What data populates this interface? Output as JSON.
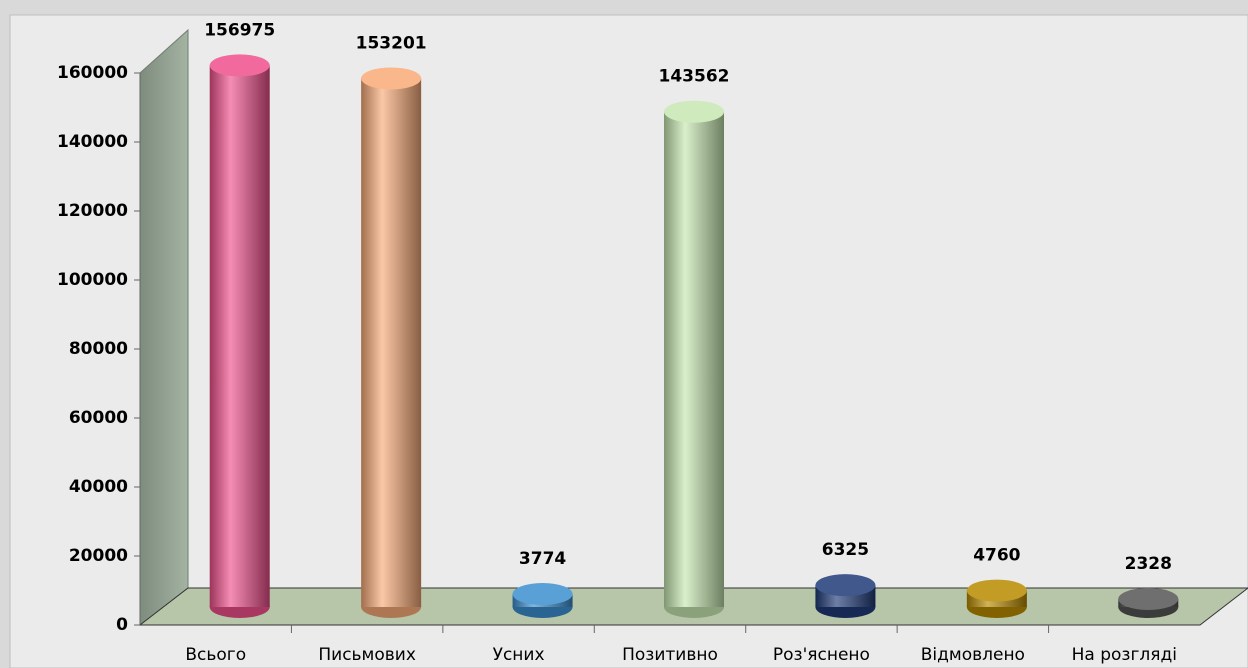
{
  "chart_data": {
    "type": "bar3d",
    "categories": [
      "Всього",
      "Письмових",
      "Усних",
      "Позитивно",
      "Роз'яснено",
      "Відмовлено",
      "На розгляді"
    ],
    "values": [
      156975,
      153201,
      3774,
      143562,
      6325,
      4760,
      2328
    ],
    "colors": [
      "#f0508c",
      "#f9aa78",
      "#3c8fd0",
      "#c6e6b0",
      "#1f3a78",
      "#b88a00",
      "#555555"
    ],
    "ylim": [
      0,
      160000
    ],
    "yticks": [
      0,
      20000,
      40000,
      60000,
      80000,
      100000,
      120000,
      140000,
      160000
    ]
  }
}
